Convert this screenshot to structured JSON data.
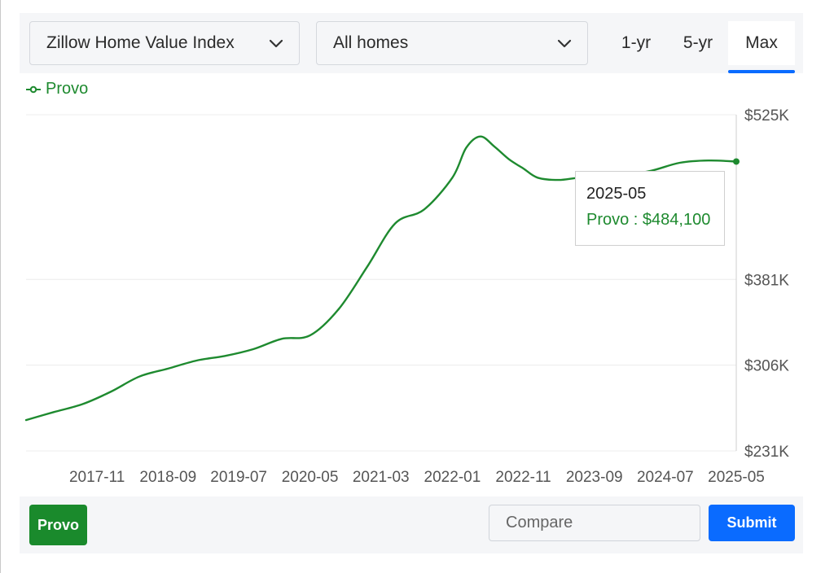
{
  "controls": {
    "metric_select": "Zillow Home Value Index",
    "home_type_select": "All homes",
    "ranges": [
      "1-yr",
      "5-yr",
      "Max"
    ],
    "active_range": "Max"
  },
  "legend": {
    "label": "Provo"
  },
  "tooltip": {
    "date": "2025-05",
    "value": "Provo : $484,100"
  },
  "bottom": {
    "region_chip": "Provo",
    "compare_placeholder": "Compare",
    "submit_label": "Submit"
  },
  "colors": {
    "series": "#1e8a2f",
    "accent": "#0a6bff",
    "chip": "#1a8a2c"
  },
  "chart_data": {
    "type": "line",
    "series": [
      {
        "name": "Provo",
        "x": [
          "2017-01",
          "2017-05",
          "2017-09",
          "2018-01",
          "2018-05",
          "2018-09",
          "2019-01",
          "2019-05",
          "2019-09",
          "2020-01",
          "2020-05",
          "2020-09",
          "2021-01",
          "2021-05",
          "2021-09",
          "2022-01",
          "2022-03",
          "2022-05",
          "2022-07",
          "2022-09",
          "2022-11",
          "2023-01",
          "2023-04",
          "2023-07",
          "2023-10",
          "2024-01",
          "2024-05",
          "2024-09",
          "2025-01",
          "2025-05"
        ],
        "values": [
          258000,
          265000,
          272000,
          283000,
          296000,
          303000,
          310000,
          314000,
          320000,
          329000,
          332000,
          355000,
          392000,
          430000,
          442000,
          470000,
          496000,
          506000,
          497000,
          486000,
          478000,
          470000,
          468000,
          470000,
          470000,
          472000,
          476000,
          483000,
          485000,
          484100
        ]
      }
    ],
    "x_ticks": [
      "2017-11",
      "2018-09",
      "2019-07",
      "2020-05",
      "2021-03",
      "2022-01",
      "2022-11",
      "2023-09",
      "2024-07",
      "2025-05"
    ],
    "y_ticks": [
      "$525K",
      "$381K",
      "$306K",
      "$231K"
    ],
    "y_tick_values": [
      525000,
      381000,
      306000,
      231000
    ],
    "ylim": [
      231000,
      525000
    ],
    "highlight_point": {
      "x": "2025-05",
      "value": 484100
    },
    "grid": true,
    "legend_position": "top-left"
  }
}
